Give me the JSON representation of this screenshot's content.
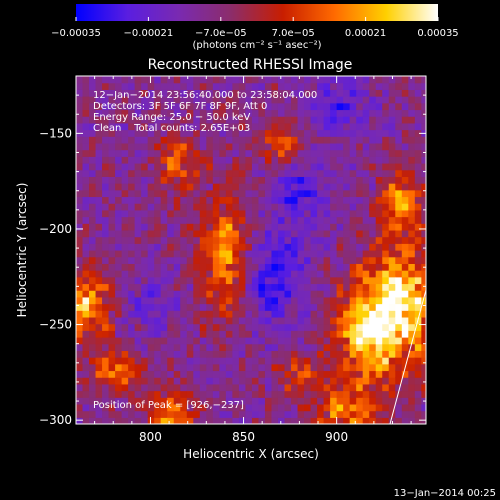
{
  "chart_data": {
    "type": "heatmap",
    "title": "Reconstructed RHESSI Image",
    "xlabel": "Heliocentric X (arcsec)",
    "ylabel": "Heliocentric Y (arcsec)",
    "xlim": [
      760,
      948
    ],
    "ylim": [
      -302,
      -120
    ],
    "xticks": [
      800,
      850,
      900
    ],
    "xtick_labels": [
      "800",
      "850",
      "900"
    ],
    "yticks": [
      -150,
      -200,
      -250,
      -300
    ],
    "ytick_labels": [
      "−150",
      "−200",
      "−250",
      "−300"
    ],
    "colorbar": {
      "min": -0.00035,
      "max": 0.00035,
      "tick_labels": [
        "−0.00035",
        "−0.00021",
        "−7.0e−05",
        "7.0e−05",
        "0.00021",
        "0.00035"
      ],
      "unit_label": "(photons cm⁻² s⁻¹ asec⁻²)",
      "colors": [
        "#0000ff",
        "#5a1ee0",
        "#7a2ab0",
        "#8c2d6a",
        "#c81e00",
        "#ff6a00",
        "#ffd000",
        "#ffffff"
      ]
    },
    "annotations": {
      "time_range": "12−Jan−2014 23:56:40.000 to 23:58:04.000",
      "detectors": "Detectors: 3F 5F 6F 7F 8F 9F, Att 0",
      "energy": "Energy Range: 25.0 − 50.0 keV",
      "clean": "Clean    Total counts: 2.65E+03",
      "peak": "Position of Peak = [926,−237]"
    },
    "hotspots": [
      {
        "x": 935,
        "y": -240,
        "amp": 1.0,
        "sx": 14,
        "sy": 22
      },
      {
        "x": 915,
        "y": -255,
        "amp": 0.8,
        "sx": 12,
        "sy": 18
      },
      {
        "x": 840,
        "y": -215,
        "amp": 0.75,
        "sx": 10,
        "sy": 22
      },
      {
        "x": 765,
        "y": -240,
        "amp": 0.8,
        "sx": 10,
        "sy": 12
      },
      {
        "x": 935,
        "y": -185,
        "amp": 0.7,
        "sx": 8,
        "sy": 12
      },
      {
        "x": 812,
        "y": -300,
        "amp": 0.75,
        "sx": 8,
        "sy": 10
      },
      {
        "x": 815,
        "y": -165,
        "amp": 0.55,
        "sx": 8,
        "sy": 10
      },
      {
        "x": 782,
        "y": -275,
        "amp": 0.6,
        "sx": 10,
        "sy": 8
      },
      {
        "x": 870,
        "y": -155,
        "amp": 0.5,
        "sx": 8,
        "sy": 8
      },
      {
        "x": 905,
        "y": -295,
        "amp": 0.6,
        "sx": 12,
        "sy": 10
      },
      {
        "x": 880,
        "y": -275,
        "amp": 0.45,
        "sx": 8,
        "sy": 8
      }
    ],
    "coldspots": [
      {
        "x": 865,
        "y": -225,
        "amp": 0.6,
        "sx": 14,
        "sy": 18
      },
      {
        "x": 880,
        "y": -180,
        "amp": 0.5,
        "sx": 10,
        "sy": 12
      },
      {
        "x": 900,
        "y": -135,
        "amp": 0.45,
        "sx": 12,
        "sy": 10
      },
      {
        "x": 800,
        "y": -240,
        "amp": 0.35,
        "sx": 10,
        "sy": 10
      }
    ]
  },
  "footer_timestamp": "13−Jan−2014 00:25"
}
